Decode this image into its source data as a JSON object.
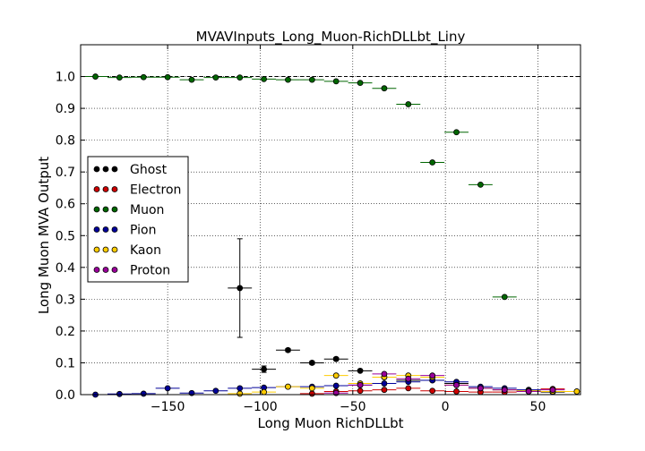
{
  "chart_data": {
    "type": "scatter",
    "title": "MVAVInputs_Long_Muon-RichDLLbt_Liny",
    "xlabel": "Long Muon RichDLLbt",
    "ylabel": "Long Muon MVA Output",
    "xlim": [
      -197,
      73
    ],
    "ylim": [
      0,
      1.1
    ],
    "x_ticks": [
      -150,
      -100,
      -50,
      0,
      50
    ],
    "x_tick_labels": [
      "−150",
      "−100",
      "−50",
      "0",
      "50"
    ],
    "y_ticks": [
      0.0,
      0.1,
      0.2,
      0.3,
      0.4,
      0.5,
      0.6,
      0.7,
      0.8,
      0.9,
      1.0
    ],
    "y_tick_labels": [
      "0.0",
      "0.1",
      "0.2",
      "0.3",
      "0.4",
      "0.5",
      "0.6",
      "0.7",
      "0.8",
      "0.9",
      "1.0"
    ],
    "reference_line_y": 1.0,
    "grid": true,
    "legend_position": "middle-left",
    "bin_half_width": 6.5,
    "series": [
      {
        "name": "Ghost",
        "color": "#000000",
        "points": [
          [
            -111,
            0.335,
            0.155
          ],
          [
            -98,
            0.08,
            0.01
          ],
          [
            -85,
            0.14,
            0.005
          ],
          [
            -72,
            0.1,
            0.005
          ],
          [
            -59,
            0.112,
            0.005
          ],
          [
            -46,
            0.075,
            0.003
          ],
          [
            -33,
            0.055,
            0.002
          ],
          [
            -20,
            0.045,
            0.002
          ],
          [
            -7,
            0.045,
            0.002
          ],
          [
            6,
            0.035,
            0.002
          ],
          [
            19,
            0.02,
            0.002
          ],
          [
            32,
            0.015,
            0.002
          ],
          [
            45,
            0.012,
            0.002
          ],
          [
            58,
            0.008,
            0.002
          ]
        ]
      },
      {
        "name": "Electron",
        "color": "#cc0000",
        "points": [
          [
            -72,
            0.003,
            0.002
          ],
          [
            -59,
            0.01,
            0.002
          ],
          [
            -46,
            0.012,
            0.002
          ],
          [
            -33,
            0.015,
            0.002
          ],
          [
            -20,
            0.02,
            0.002
          ],
          [
            -7,
            0.012,
            0.002
          ],
          [
            6,
            0.01,
            0.002
          ],
          [
            19,
            0.008,
            0.002
          ],
          [
            32,
            0.008,
            0.002
          ],
          [
            45,
            0.01,
            0.002
          ],
          [
            58,
            0.018,
            0.002
          ]
        ]
      },
      {
        "name": "Muon",
        "color": "#006600",
        "points": [
          [
            -189,
            1.0,
            0.001
          ],
          [
            -176,
            0.997,
            0.001
          ],
          [
            -163,
            0.998,
            0.001
          ],
          [
            -150,
            0.998,
            0.001
          ],
          [
            -137,
            0.99,
            0.002
          ],
          [
            -124,
            0.997,
            0.001
          ],
          [
            -111,
            0.997,
            0.001
          ],
          [
            -98,
            0.992,
            0.001
          ],
          [
            -85,
            0.99,
            0.001
          ],
          [
            -72,
            0.99,
            0.001
          ],
          [
            -59,
            0.985,
            0.001
          ],
          [
            -46,
            0.98,
            0.001
          ],
          [
            -33,
            0.963,
            0.001
          ],
          [
            -20,
            0.913,
            0.002
          ],
          [
            -7,
            0.73,
            0.002
          ],
          [
            6,
            0.825,
            0.002
          ],
          [
            19,
            0.66,
            0.002
          ],
          [
            32,
            0.307,
            0.002
          ]
        ]
      },
      {
        "name": "Pion",
        "color": "#000099",
        "points": [
          [
            -189,
            0.0,
            0.001
          ],
          [
            -176,
            0.002,
            0.001
          ],
          [
            -163,
            0.003,
            0.001
          ],
          [
            -150,
            0.02,
            0.001
          ],
          [
            -137,
            0.005,
            0.001
          ],
          [
            -124,
            0.012,
            0.001
          ],
          [
            -111,
            0.02,
            0.001
          ],
          [
            -98,
            0.022,
            0.001
          ],
          [
            -85,
            0.025,
            0.001
          ],
          [
            -72,
            0.025,
            0.001
          ],
          [
            -59,
            0.028,
            0.001
          ],
          [
            -46,
            0.03,
            0.001
          ],
          [
            -33,
            0.035,
            0.001
          ],
          [
            -20,
            0.04,
            0.001
          ],
          [
            -7,
            0.045,
            0.001
          ],
          [
            6,
            0.04,
            0.001
          ],
          [
            19,
            0.025,
            0.001
          ],
          [
            32,
            0.02,
            0.001
          ],
          [
            45,
            0.015,
            0.001
          ],
          [
            58,
            0.01,
            0.001
          ]
        ]
      },
      {
        "name": "Kaon",
        "color": "#ffcc00",
        "points": [
          [
            -111,
            0.003,
            0.001
          ],
          [
            -98,
            0.008,
            0.001
          ],
          [
            -85,
            0.025,
            0.002
          ],
          [
            -72,
            0.02,
            0.002
          ],
          [
            -59,
            0.06,
            0.003
          ],
          [
            -46,
            0.035,
            0.002
          ],
          [
            -33,
            0.055,
            0.003
          ],
          [
            -20,
            0.06,
            0.003
          ],
          [
            -7,
            0.055,
            0.003
          ],
          [
            6,
            0.03,
            0.002
          ],
          [
            19,
            0.02,
            0.002
          ],
          [
            32,
            0.015,
            0.002
          ],
          [
            45,
            0.012,
            0.002
          ],
          [
            58,
            0.01,
            0.002
          ],
          [
            71,
            0.01,
            0.002
          ]
        ]
      },
      {
        "name": "Proton",
        "color": "#990099",
        "points": [
          [
            -59,
            0.005,
            0.002
          ],
          [
            -46,
            0.03,
            0.003
          ],
          [
            -33,
            0.065,
            0.004
          ],
          [
            -20,
            0.05,
            0.004
          ],
          [
            -7,
            0.06,
            0.004
          ],
          [
            6,
            0.03,
            0.003
          ],
          [
            19,
            0.02,
            0.003
          ],
          [
            32,
            0.015,
            0.002
          ],
          [
            45,
            0.01,
            0.002
          ],
          [
            58,
            0.015,
            0.002
          ]
        ]
      }
    ]
  }
}
